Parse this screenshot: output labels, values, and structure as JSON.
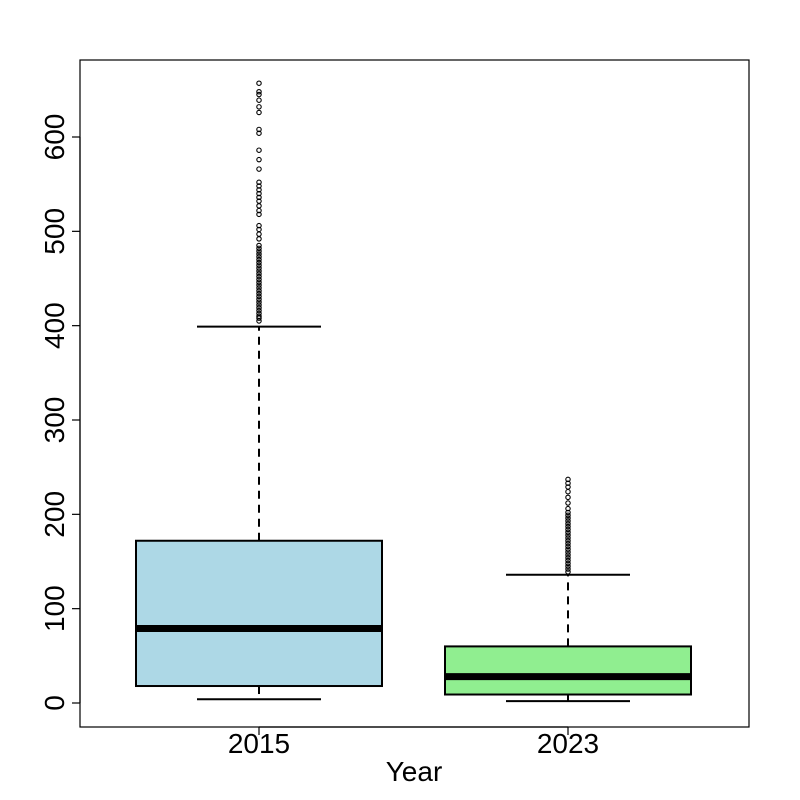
{
  "chart_data": {
    "type": "box",
    "title": "",
    "xlabel": "Year",
    "ylabel": "",
    "ylim": [
      -25,
      680
    ],
    "y_ticks": [
      "0",
      "100",
      "200",
      "300",
      "400",
      "500",
      "600"
    ],
    "grid": false,
    "legend": "none",
    "categories": [
      "2015",
      "2023"
    ],
    "boxes": [
      {
        "category": "2015",
        "color": "#add8e6",
        "whisker_low": 4,
        "q1": 18,
        "median": 79,
        "q3": 172,
        "whisker_high": 399,
        "outliers": [
          405,
          408,
          410,
          413,
          416,
          419,
          422,
          425,
          428,
          431,
          434,
          437,
          440,
          443,
          446,
          449,
          452,
          455,
          458,
          461,
          464,
          467,
          470,
          473,
          476,
          479,
          482,
          485,
          492,
          497,
          502,
          506,
          518,
          522,
          527,
          532,
          536,
          540,
          544,
          548,
          552,
          566,
          576,
          586,
          604,
          608,
          626,
          632,
          639,
          645,
          648,
          657
        ]
      },
      {
        "category": "2023",
        "color": "#90ee90",
        "whisker_low": 2,
        "q1": 9,
        "median": 28,
        "q3": 60,
        "whisker_high": 136,
        "outliers": [
          139,
          142,
          145,
          148,
          151,
          154,
          157,
          160,
          163,
          166,
          169,
          172,
          175,
          178,
          181,
          184,
          187,
          190,
          193,
          196,
          199,
          202,
          206,
          212,
          218,
          224,
          229,
          233,
          237
        ]
      }
    ]
  }
}
